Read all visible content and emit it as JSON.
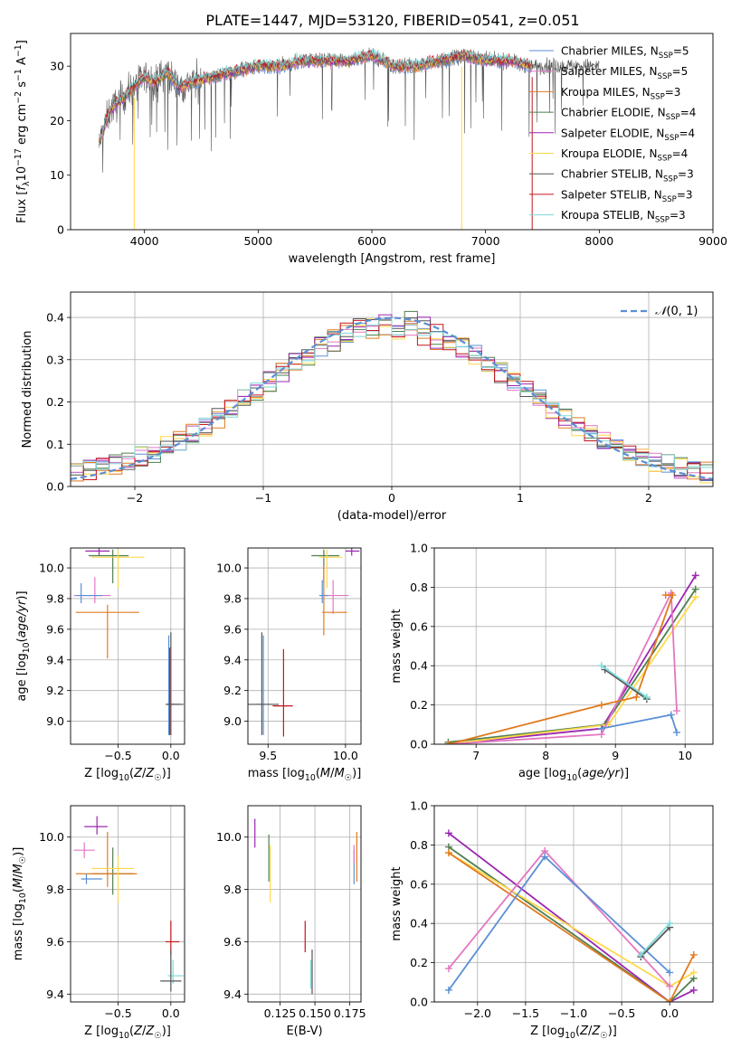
{
  "title": "PLATE=1447, MJD=53120, FIBERID=0541, z=0.051",
  "colors": {
    "chabrier_miles": "#5b8fd6",
    "salpeter_miles": "#e377c2",
    "kroupa_miles": "#e07b1f",
    "chabrier_elodie": "#4f7f4f",
    "salpeter_elodie": "#9a27b0",
    "kroupa_elodie": "#ffd84a",
    "chabrier_stelib": "#555555",
    "salpeter_stelib": "#c4161c",
    "kroupa_stelib": "#7dd8d8",
    "normal_curve": "#5b8fd6",
    "grid": "#b0b0b0"
  },
  "chart_data": [
    {
      "id": "spectrum",
      "type": "line",
      "xlabel": "wavelength [Angstrom, rest frame]",
      "ylabel": "Flux [fλ10⁻¹⁷ erg cm⁻² s⁻¹ A⁻¹]",
      "xlim": [
        3350,
        9000
      ],
      "ylim": [
        0,
        36
      ],
      "xticks": [
        4000,
        5000,
        6000,
        7000,
        8000,
        9000
      ],
      "yticks": [
        0,
        10,
        20,
        30
      ],
      "grid": false,
      "legend_position": "right",
      "legend": [
        {
          "main": "Chabrier MILES, N",
          "sub": "SSP",
          "tail": "=5",
          "color": "chabrier_miles"
        },
        {
          "main": "Salpeter MILES, N",
          "sub": "SSP",
          "tail": "=5",
          "color": "salpeter_miles"
        },
        {
          "main": "Kroupa MILES, N",
          "sub": "SSP",
          "tail": "=3",
          "color": "kroupa_miles"
        },
        {
          "main": "Chabrier ELODIE, N",
          "sub": "SSP",
          "tail": "=4",
          "color": "chabrier_elodie"
        },
        {
          "main": "Salpeter ELODIE, N",
          "sub": "SSP",
          "tail": "=4",
          "color": "salpeter_elodie"
        },
        {
          "main": "Kroupa ELODIE, N",
          "sub": "SSP",
          "tail": "=4",
          "color": "kroupa_elodie"
        },
        {
          "main": "Chabrier STELIB, N",
          "sub": "SSP",
          "tail": "=3",
          "color": "chabrier_stelib"
        },
        {
          "main": "Salpeter STELIB, N",
          "sub": "SSP",
          "tail": "=3",
          "color": "salpeter_stelib"
        },
        {
          "main": "Kroupa STELIB, N",
          "sub": "SSP",
          "tail": "=3",
          "color": "kroupa_stelib"
        }
      ],
      "data_range": [
        3600,
        7400
      ],
      "envelope": {
        "x": [
          3600,
          3700,
          3800,
          3900,
          4000,
          4100,
          4200,
          4300,
          4400,
          4600,
          4800,
          5000,
          5200,
          5400,
          5600,
          5800,
          6000,
          6200,
          6400,
          6600,
          6800,
          7000,
          7200,
          7400
        ],
        "y": [
          16,
          22,
          24,
          26,
          28,
          27,
          29,
          26,
          27,
          28,
          29,
          30,
          30,
          31,
          31,
          31,
          32,
          30,
          30,
          31,
          32,
          31,
          31,
          30
        ]
      },
      "cutoffs": [
        3910,
        6790,
        7410
      ]
    },
    {
      "id": "residuals",
      "type": "histogram",
      "xlabel": "(data-model)/error",
      "ylabel": "Normed distribution",
      "xlim": [
        -2.5,
        2.5
      ],
      "ylim": [
        0,
        0.46
      ],
      "xticks": [
        -2,
        -1,
        0,
        1,
        2
      ],
      "yticks": [
        0.0,
        0.1,
        0.2,
        0.3,
        0.4
      ],
      "grid": true,
      "legend_position": "top-right",
      "curve_label": "N(0,1)",
      "bin_width": 0.1,
      "bin_start": -2.5,
      "series_colors": [
        "chabrier_miles",
        "salpeter_miles",
        "kroupa_miles",
        "chabrier_elodie",
        "salpeter_elodie",
        "kroupa_elodie",
        "chabrier_stelib",
        "salpeter_stelib",
        "kroupa_stelib"
      ]
    },
    {
      "id": "age_vs_Z",
      "type": "scatter",
      "xlabel": "Z [log10(Z/Z☉)]",
      "ylabel": "age [log10(age/yr)]",
      "xlim": [
        -0.95,
        0.13
      ],
      "ylim": [
        8.85,
        10.13
      ],
      "xticks": [
        -0.5,
        0.0
      ],
      "yticks": [
        9.0,
        9.2,
        9.4,
        9.6,
        9.8,
        10.0
      ],
      "grid": true,
      "points": [
        {
          "color": "salpeter_elodie",
          "x": -0.68,
          "y": 10.11,
          "xerr": [
            0.13,
            0.1
          ],
          "yerr": [
            0.03,
            0.02
          ]
        },
        {
          "color": "chabrier_elodie",
          "x": -0.55,
          "y": 10.08,
          "xerr": [
            0.23,
            0.15
          ],
          "yerr": [
            0.18,
            0.04
          ]
        },
        {
          "color": "kroupa_elodie",
          "x": -0.5,
          "y": 10.07,
          "xerr": [
            0.25,
            0.25
          ],
          "yerr": [
            0.2,
            0.05
          ]
        },
        {
          "color": "salpeter_miles",
          "x": -0.72,
          "y": 9.82,
          "xerr": [
            0.2,
            0.15
          ],
          "yerr": [
            0.05,
            0.12
          ]
        },
        {
          "color": "chabrier_miles",
          "x": -0.85,
          "y": 9.82,
          "xerr": [
            0.05,
            0.2
          ],
          "yerr": [
            0.05,
            0.08
          ]
        },
        {
          "color": "kroupa_miles",
          "x": -0.6,
          "y": 9.71,
          "xerr": [
            0.3,
            0.3
          ],
          "yerr": [
            0.3,
            0.05
          ]
        },
        {
          "color": "chabrier_miles",
          "x": -0.02,
          "y": 9.11,
          "xerr": [
            0.02,
            0.05
          ],
          "yerr": [
            0.2,
            0.45
          ]
        },
        {
          "color": "salpeter_stelib",
          "x": -0.01,
          "y": 9.11,
          "xerr": [
            0.03,
            0.1
          ],
          "yerr": [
            0.2,
            0.37
          ]
        },
        {
          "color": "chabrier_stelib",
          "x": 0.0,
          "y": 9.11,
          "xerr": [
            0.05,
            0.12
          ],
          "yerr": [
            0.2,
            0.47
          ]
        }
      ]
    },
    {
      "id": "age_vs_mass",
      "type": "scatter",
      "xlabel": "mass [log10(M/M☉)]",
      "ylabel": "",
      "xlim": [
        9.37,
        10.1
      ],
      "ylim": [
        8.85,
        10.13
      ],
      "xticks": [
        9.5,
        10.0
      ],
      "yticks": [
        9.0,
        9.2,
        9.4,
        9.6,
        9.8,
        10.0
      ],
      "grid": true,
      "points": [
        {
          "color": "salpeter_elodie",
          "x": 10.04,
          "y": 10.11,
          "xerr": [
            0.04,
            0.05
          ],
          "yerr": [
            0.03,
            0.02
          ]
        },
        {
          "color": "chabrier_elodie",
          "x": 9.86,
          "y": 10.08,
          "xerr": [
            0.08,
            0.1
          ],
          "yerr": [
            0.18,
            0.04
          ]
        },
        {
          "color": "kroupa_elodie",
          "x": 9.88,
          "y": 10.07,
          "xerr": [
            0.05,
            0.1
          ],
          "yerr": [
            0.2,
            0.05
          ]
        },
        {
          "color": "salpeter_miles",
          "x": 9.92,
          "y": 9.82,
          "xerr": [
            0.05,
            0.1
          ],
          "yerr": [
            0.12,
            0.1
          ]
        },
        {
          "color": "chabrier_miles",
          "x": 9.85,
          "y": 9.82,
          "xerr": [
            0.02,
            0.04
          ],
          "yerr": [
            0.05,
            0.1
          ]
        },
        {
          "color": "kroupa_miles",
          "x": 9.86,
          "y": 9.71,
          "xerr": [
            0.01,
            0.15
          ],
          "yerr": [
            0.15,
            0.3
          ]
        },
        {
          "color": "chabrier_miles",
          "x": 9.47,
          "y": 9.11,
          "xerr": [
            0.05,
            0.05
          ],
          "yerr": [
            0.2,
            0.45
          ]
        },
        {
          "color": "salpeter_stelib",
          "x": 9.6,
          "y": 9.1,
          "xerr": [
            0.07,
            0.06
          ],
          "yerr": [
            0.2,
            0.37
          ]
        },
        {
          "color": "chabrier_stelib",
          "x": 9.46,
          "y": 9.11,
          "xerr": [
            0.1,
            0.11
          ],
          "yerr": [
            0.2,
            0.47
          ]
        }
      ]
    },
    {
      "id": "mass_weight_vs_age",
      "type": "line",
      "xlabel": "age [log10(age/yr)]",
      "ylabel": "mass weight",
      "xlim": [
        6.4,
        10.4
      ],
      "ylim": [
        0,
        1.0
      ],
      "xticks": [
        7,
        8,
        9,
        10
      ],
      "yticks": [
        0.0,
        0.2,
        0.4,
        0.6,
        0.8,
        1.0
      ],
      "grid": true,
      "series": [
        {
          "color": "salpeter_elodie",
          "x": [
            6.6,
            8.8,
            10.15
          ],
          "y": [
            0.0,
            0.08,
            0.86
          ]
        },
        {
          "color": "chabrier_elodie",
          "x": [
            6.6,
            8.85,
            10.15
          ],
          "y": [
            0.01,
            0.1,
            0.79
          ]
        },
        {
          "color": "kroupa_elodie",
          "x": [
            6.6,
            8.9,
            10.15
          ],
          "y": [
            0.0,
            0.1,
            0.75
          ]
        },
        {
          "color": "salpeter_miles",
          "x": [
            6.6,
            8.8,
            9.8,
            9.88
          ],
          "y": [
            0.0,
            0.05,
            0.77,
            0.17
          ]
        },
        {
          "color": "chabrier_miles",
          "x": [
            8.8,
            9.8,
            9.88
          ],
          "y": [
            0.08,
            0.15,
            0.06
          ]
        },
        {
          "color": "kroupa_miles",
          "x": [
            6.6,
            8.8,
            9.3,
            9.82,
            9.72
          ],
          "y": [
            0.0,
            0.2,
            0.24,
            0.76,
            0.76
          ]
        },
        {
          "color": "chabrier_stelib",
          "x": [
            8.85,
            9.45
          ],
          "y": [
            0.38,
            0.23
          ]
        },
        {
          "color": "kroupa_stelib",
          "x": [
            8.8,
            9.45
          ],
          "y": [
            0.4,
            0.24
          ]
        }
      ]
    },
    {
      "id": "mass_vs_Z",
      "type": "scatter",
      "xlabel": "Z [log10(Z/Z☉)]",
      "ylabel": "mass [log10(M/M☉)]",
      "xlim": [
        -0.95,
        0.13
      ],
      "ylim": [
        9.37,
        10.12
      ],
      "xticks": [
        -0.5,
        0.0
      ],
      "yticks": [
        9.4,
        9.6,
        9.8,
        10.0
      ],
      "grid": true,
      "points": [
        {
          "color": "salpeter_elodie",
          "x": -0.7,
          "y": 10.04,
          "xerr": [
            0.12,
            0.1
          ],
          "yerr": [
            0.03,
            0.04
          ]
        },
        {
          "color": "salpeter_miles",
          "x": -0.82,
          "y": 9.95,
          "xerr": [
            0.1,
            0.1
          ],
          "yerr": [
            0.03,
            0.03
          ]
        },
        {
          "color": "chabrier_elodie",
          "x": -0.55,
          "y": 9.86,
          "xerr": [
            0.2,
            0.2
          ],
          "yerr": [
            0.08,
            0.1
          ]
        },
        {
          "color": "kroupa_miles",
          "x": -0.6,
          "y": 9.86,
          "xerr": [
            0.3,
            0.28
          ],
          "yerr": [
            0.05,
            0.16
          ]
        },
        {
          "color": "kroupa_elodie",
          "x": -0.5,
          "y": 9.88,
          "xerr": [
            0.25,
            0.15
          ],
          "yerr": [
            0.13,
            0.05
          ]
        },
        {
          "color": "chabrier_miles",
          "x": -0.8,
          "y": 9.84,
          "xerr": [
            0.05,
            0.15
          ],
          "yerr": [
            0.02,
            0.02
          ]
        },
        {
          "color": "salpeter_stelib",
          "x": 0.0,
          "y": 9.6,
          "xerr": [
            0.05,
            0.08
          ],
          "yerr": [
            0.05,
            0.08
          ]
        },
        {
          "color": "kroupa_stelib",
          "x": 0.02,
          "y": 9.47,
          "xerr": [
            0.05,
            0.1
          ],
          "yerr": [
            0.03,
            0.06
          ]
        },
        {
          "color": "chabrier_stelib",
          "x": 0.0,
          "y": 9.45,
          "xerr": [
            0.1,
            0.1
          ],
          "yerr": [
            0.04,
            0.12
          ]
        }
      ]
    },
    {
      "id": "mass_vs_ebv",
      "type": "scatter",
      "xlabel": "E(B-V)",
      "ylabel": "",
      "xlim": [
        0.102,
        0.183
      ],
      "ylim": [
        9.37,
        10.12
      ],
      "xticks": [
        0.125,
        0.15,
        0.175
      ],
      "yticks": [
        9.4,
        9.6,
        9.8,
        10.0
      ],
      "grid": true,
      "points": [
        {
          "color": "salpeter_elodie",
          "x": 0.107,
          "y": 10.04,
          "yerr": [
            0.08,
            0.03
          ]
        },
        {
          "color": "chabrier_elodie",
          "x": 0.117,
          "y": 9.95,
          "yerr": [
            0.12,
            0.06
          ]
        },
        {
          "color": "kroupa_elodie",
          "x": 0.118,
          "y": 9.85,
          "yerr": [
            0.1,
            0.12
          ]
        },
        {
          "color": "chabrier_miles",
          "x": 0.178,
          "y": 9.9,
          "yerr": [
            0.08,
            0.05
          ]
        },
        {
          "color": "kroupa_miles",
          "x": 0.18,
          "y": 9.95,
          "yerr": [
            0.12,
            0.07
          ]
        },
        {
          "color": "salpeter_miles",
          "x": 0.178,
          "y": 9.95,
          "yerr": [
            0.05,
            0.02
          ]
        },
        {
          "color": "salpeter_stelib",
          "x": 0.143,
          "y": 9.62,
          "yerr": [
            0.06,
            0.06
          ]
        },
        {
          "color": "kroupa_stelib",
          "x": 0.147,
          "y": 9.48,
          "yerr": [
            0.06,
            0.05
          ]
        },
        {
          "color": "chabrier_stelib",
          "x": 0.148,
          "y": 9.48,
          "yerr": [
            0.08,
            0.09
          ]
        }
      ]
    },
    {
      "id": "mass_weight_vs_Z",
      "type": "line",
      "xlabel": "Z [log10(Z/Z☉)]",
      "ylabel": "mass weight",
      "xlim": [
        -2.45,
        0.45
      ],
      "ylim": [
        0,
        1.0
      ],
      "xticks": [
        -2.0,
        -1.5,
        -1.0,
        -0.5,
        0.0
      ],
      "yticks": [
        0.0,
        0.2,
        0.4,
        0.6,
        0.8,
        1.0
      ],
      "grid": true,
      "series": [
        {
          "color": "salpeter_elodie",
          "x": [
            -2.3,
            0.0,
            0.25
          ],
          "y": [
            0.86,
            0.0,
            0.06
          ]
        },
        {
          "color": "chabrier_elodie",
          "x": [
            -2.3,
            0.0,
            0.25
          ],
          "y": [
            0.79,
            0.0,
            0.12
          ]
        },
        {
          "color": "kroupa_elodie",
          "x": [
            -2.3,
            0.0,
            0.25
          ],
          "y": [
            0.76,
            0.08,
            0.15
          ]
        },
        {
          "color": "kroupa_miles",
          "x": [
            -2.3,
            0.0,
            0.25
          ],
          "y": [
            0.76,
            0.0,
            0.24
          ]
        },
        {
          "color": "salpeter_miles",
          "x": [
            -2.3,
            -1.3,
            0.0
          ],
          "y": [
            0.17,
            0.77,
            0.08
          ]
        },
        {
          "color": "chabrier_miles",
          "x": [
            -2.3,
            -1.3,
            0.0
          ],
          "y": [
            0.06,
            0.74,
            0.15
          ]
        },
        {
          "color": "chabrier_stelib",
          "x": [
            -0.3,
            0.0
          ],
          "y": [
            0.23,
            0.38
          ]
        },
        {
          "color": "kroupa_stelib",
          "x": [
            -0.3,
            0.0
          ],
          "y": [
            0.24,
            0.4
          ]
        }
      ]
    }
  ]
}
